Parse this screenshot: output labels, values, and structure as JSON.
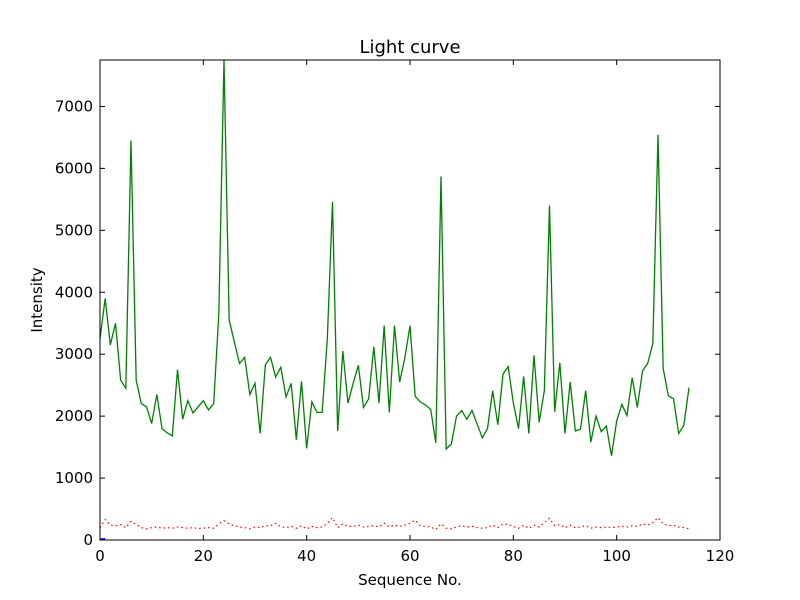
{
  "chart_data": {
    "type": "line",
    "title": "Light curve",
    "xlabel": "Sequence No.",
    "ylabel": "Intensity",
    "xlim": [
      0,
      120
    ],
    "ylim": [
      0,
      7750
    ],
    "xticks": [
      0,
      20,
      40,
      60,
      80,
      100,
      120
    ],
    "yticks": [
      0,
      1000,
      2000,
      3000,
      4000,
      5000,
      6000,
      7000
    ],
    "grid": false,
    "colors": {
      "green_series": "#008000",
      "red_series": "#ff0000",
      "blue_series": "#0000ff"
    },
    "series": [
      {
        "style": "solid",
        "color": "#008000",
        "x": [
          0,
          1,
          2,
          3,
          4,
          5,
          6,
          7,
          8,
          9,
          10,
          11,
          12,
          13,
          14,
          15,
          16,
          17,
          18,
          19,
          20,
          21,
          22,
          23,
          24,
          25,
          26,
          27,
          28,
          29,
          30,
          31,
          32,
          33,
          34,
          35,
          36,
          37,
          38,
          39,
          40,
          41,
          42,
          43,
          44,
          45,
          46,
          47,
          48,
          49,
          50,
          51,
          52,
          53,
          54,
          55,
          56,
          57,
          58,
          59,
          60,
          61,
          62,
          63,
          64,
          65,
          66,
          67,
          68,
          69,
          70,
          71,
          72,
          73,
          74,
          75,
          76,
          77,
          78,
          79,
          80,
          81,
          82,
          83,
          84,
          85,
          86,
          87,
          88,
          89,
          90,
          91,
          92,
          93,
          94,
          95,
          96,
          97,
          98,
          99,
          100,
          101,
          102,
          103,
          104,
          105,
          106,
          107,
          108,
          109,
          110,
          111,
          112,
          113,
          114
        ],
        "values": [
          3250,
          3900,
          3150,
          3500,
          2580,
          2450,
          6450,
          2580,
          2200,
          2150,
          1880,
          2350,
          1800,
          1730,
          1680,
          2750,
          1950,
          2250,
          2050,
          2150,
          2250,
          2100,
          2200,
          3650,
          7750,
          3550,
          3200,
          2850,
          2950,
          2350,
          2530,
          1720,
          2830,
          2950,
          2630,
          2790,
          2310,
          2530,
          1620,
          2560,
          1480,
          2230,
          2060,
          2060,
          3250,
          5460,
          1760,
          3050,
          2210,
          2530,
          2820,
          2140,
          2280,
          3120,
          2210,
          3460,
          2060,
          3460,
          2550,
          2940,
          3460,
          2320,
          2230,
          2180,
          2110,
          1570,
          5870,
          1470,
          1550,
          2000,
          2090,
          1950,
          2090,
          1870,
          1650,
          1800,
          2410,
          1860,
          2680,
          2800,
          2210,
          1800,
          2640,
          1720,
          2980,
          1900,
          2410,
          5400,
          2070,
          2860,
          1720,
          2550,
          1760,
          1790,
          2410,
          1580,
          2000,
          1750,
          1840,
          1360,
          1920,
          2190,
          2010,
          2620,
          2140,
          2730,
          2850,
          3170,
          6540,
          2770,
          2330,
          2280,
          1720,
          1850,
          2460
        ]
      },
      {
        "style": "dotted",
        "color": "#ff0000",
        "x": [
          0,
          1,
          2,
          3,
          4,
          5,
          6,
          7,
          8,
          9,
          10,
          11,
          12,
          13,
          14,
          15,
          16,
          17,
          18,
          19,
          20,
          21,
          22,
          23,
          24,
          25,
          26,
          27,
          28,
          29,
          30,
          31,
          32,
          33,
          34,
          35,
          36,
          37,
          38,
          39,
          40,
          41,
          42,
          43,
          44,
          45,
          46,
          47,
          48,
          49,
          50,
          51,
          52,
          53,
          54,
          55,
          56,
          57,
          58,
          59,
          60,
          61,
          62,
          63,
          64,
          65,
          66,
          67,
          68,
          69,
          70,
          71,
          72,
          73,
          74,
          75,
          76,
          77,
          78,
          79,
          80,
          81,
          82,
          83,
          84,
          85,
          86,
          87,
          88,
          89,
          90,
          91,
          92,
          93,
          94,
          95,
          96,
          97,
          98,
          99,
          100,
          101,
          102,
          103,
          104,
          105,
          106,
          107,
          108,
          109,
          110,
          111,
          112,
          113,
          114
        ],
        "values": [
          200,
          330,
          240,
          230,
          250,
          200,
          300,
          250,
          200,
          180,
          200,
          210,
          190,
          200,
          190,
          210,
          200,
          190,
          200,
          185,
          190,
          200,
          190,
          260,
          310,
          260,
          230,
          210,
          200,
          180,
          210,
          200,
          230,
          230,
          270,
          210,
          200,
          220,
          190,
          230,
          180,
          220,
          200,
          210,
          270,
          360,
          200,
          260,
          220,
          220,
          240,
          210,
          220,
          230,
          210,
          270,
          210,
          240,
          220,
          240,
          270,
          320,
          230,
          220,
          210,
          170,
          260,
          190,
          180,
          210,
          230,
          210,
          220,
          200,
          190,
          200,
          240,
          200,
          260,
          250,
          220,
          190,
          240,
          190,
          240,
          210,
          280,
          350,
          230,
          250,
          200,
          240,
          200,
          210,
          230,
          190,
          210,
          200,
          210,
          200,
          210,
          220,
          210,
          230,
          220,
          260,
          240,
          280,
          360,
          260,
          230,
          240,
          210,
          200,
          180
        ]
      },
      {
        "style": "solid",
        "color": "#0000ff",
        "x": [
          0,
          1
        ],
        "values": [
          0,
          10
        ]
      }
    ]
  }
}
